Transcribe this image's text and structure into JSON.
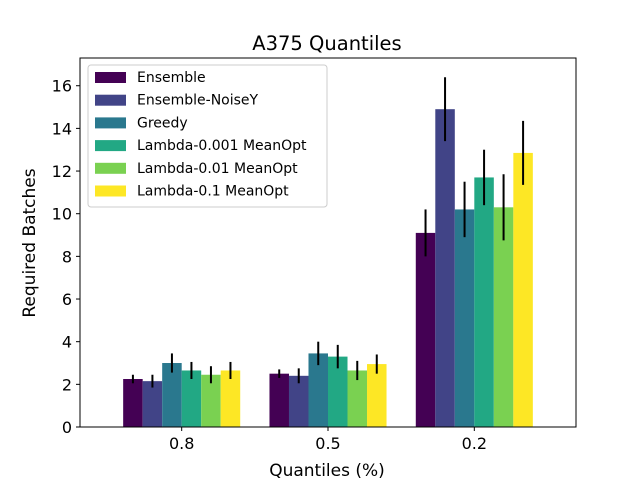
{
  "chart_data": {
    "type": "bar",
    "title": "A375 Quantiles",
    "xlabel": "Quantiles (%)",
    "ylabel": "Required Batches",
    "categories": [
      "0.8",
      "0.5",
      "0.2"
    ],
    "ylim": [
      0,
      17.3
    ],
    "yticks": [
      0,
      2,
      4,
      6,
      8,
      10,
      12,
      14,
      16
    ],
    "ytick_labels": [
      "0",
      "2",
      "4",
      "6",
      "8",
      "10",
      "12",
      "14",
      "16"
    ],
    "grid": false,
    "legend_position": "top-left",
    "series": [
      {
        "name": "Ensemble",
        "color": "#440154",
        "values": [
          2.25,
          2.5,
          9.1
        ],
        "errors": [
          0.2,
          0.2,
          1.1
        ]
      },
      {
        "name": "Ensemble-NoiseY",
        "color": "#414487",
        "values": [
          2.15,
          2.4,
          14.9
        ],
        "errors": [
          0.3,
          0.35,
          1.5
        ]
      },
      {
        "name": "Greedy",
        "color": "#2a788e",
        "values": [
          3.0,
          3.45,
          10.2
        ],
        "errors": [
          0.45,
          0.55,
          1.3
        ]
      },
      {
        "name": "Lambda-0.001 MeanOpt",
        "color": "#22a884",
        "values": [
          2.65,
          3.3,
          11.7
        ],
        "errors": [
          0.4,
          0.55,
          1.3
        ]
      },
      {
        "name": "Lambda-0.01 MeanOpt",
        "color": "#7ad151",
        "values": [
          2.45,
          2.65,
          10.3
        ],
        "errors": [
          0.4,
          0.45,
          1.55
        ]
      },
      {
        "name": "Lambda-0.1 MeanOpt",
        "color": "#fde725",
        "values": [
          2.65,
          2.95,
          12.85
        ],
        "errors": [
          0.4,
          0.45,
          1.5
        ]
      }
    ]
  }
}
